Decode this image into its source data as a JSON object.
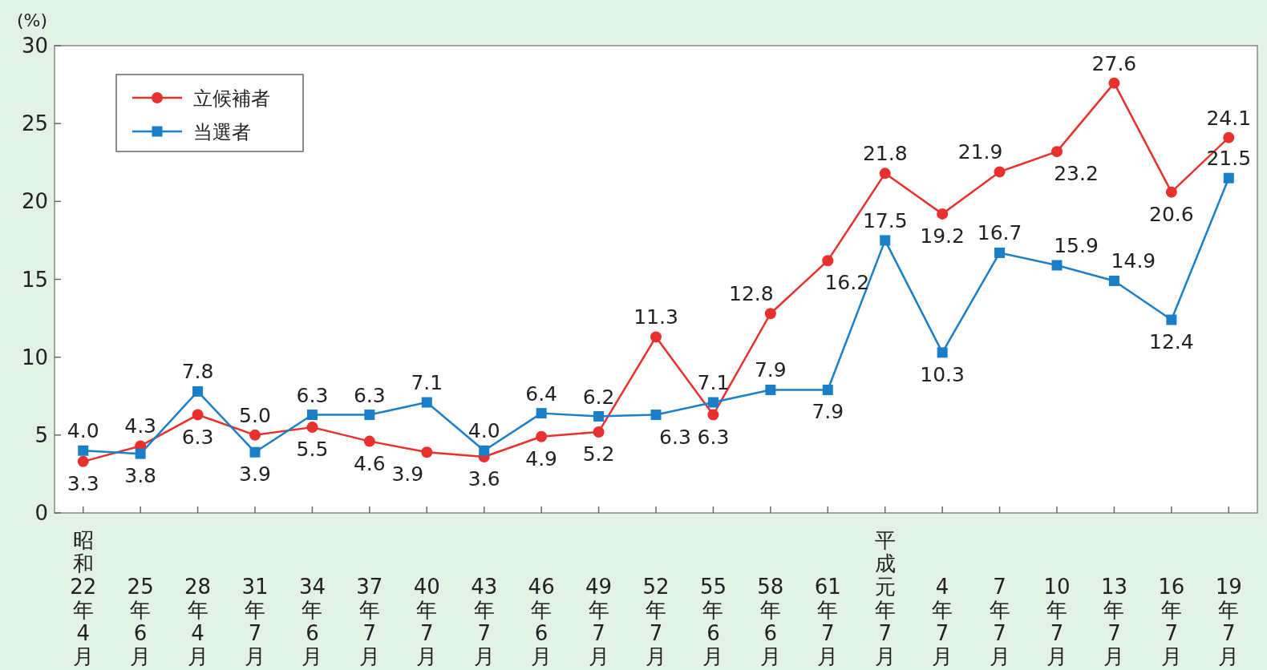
{
  "chart_data": {
    "type": "line",
    "ylabel": "(%)",
    "categories": [
      "昭和22年4月",
      "25年6月",
      "28年4月",
      "31年7月",
      "34年6月",
      "37年7月",
      "40年7月",
      "43年7月",
      "46年6月",
      "49年7月",
      "52年7月",
      "55年6月",
      "58年6月",
      "61年7月",
      "平成元年7月",
      "4年7月",
      "7年7月",
      "10年7月",
      "13年7月",
      "16年7月",
      "19年7月"
    ],
    "series": [
      {
        "name": "立候補者",
        "color": "#e8302c",
        "marker": "circle",
        "values": [
          3.3,
          4.3,
          6.3,
          5.0,
          5.5,
          4.6,
          3.9,
          3.6,
          4.9,
          5.2,
          11.3,
          6.3,
          12.8,
          16.2,
          21.8,
          19.2,
          21.9,
          23.2,
          27.6,
          20.6,
          24.1
        ],
        "value_labels": [
          "3.3",
          "4.3",
          "6.3",
          "5.0",
          "5.5",
          "4.6",
          "3.9",
          "3.6",
          "4.9",
          "5.2",
          "11.3",
          "6.3",
          "12.8",
          "16.2",
          "21.8",
          "19.2",
          "21.9",
          "23.2",
          "27.6",
          "20.6",
          "24.1"
        ]
      },
      {
        "name": "当選者",
        "color": "#1a7fc6",
        "marker": "square",
        "values": [
          4.0,
          3.8,
          7.8,
          3.9,
          6.3,
          6.3,
          7.1,
          4.0,
          6.4,
          6.2,
          6.3,
          7.1,
          7.9,
          7.9,
          17.5,
          10.3,
          16.7,
          15.9,
          14.9,
          12.4,
          21.5
        ],
        "value_labels": [
          "4.0",
          "3.8",
          "7.8",
          "3.9",
          "6.3",
          "6.3",
          "7.1",
          "4.0",
          "6.4",
          "6.2",
          "6.3",
          "7.1",
          "7.9",
          "7.9",
          "17.5",
          "10.3",
          "16.7",
          "15.9",
          "14.9",
          "12.4",
          "21.5"
        ]
      }
    ],
    "ylim": [
      0,
      30
    ],
    "yticks": [
      0,
      5,
      10,
      15,
      20,
      25,
      30
    ],
    "grid": false,
    "legend": "top left"
  }
}
